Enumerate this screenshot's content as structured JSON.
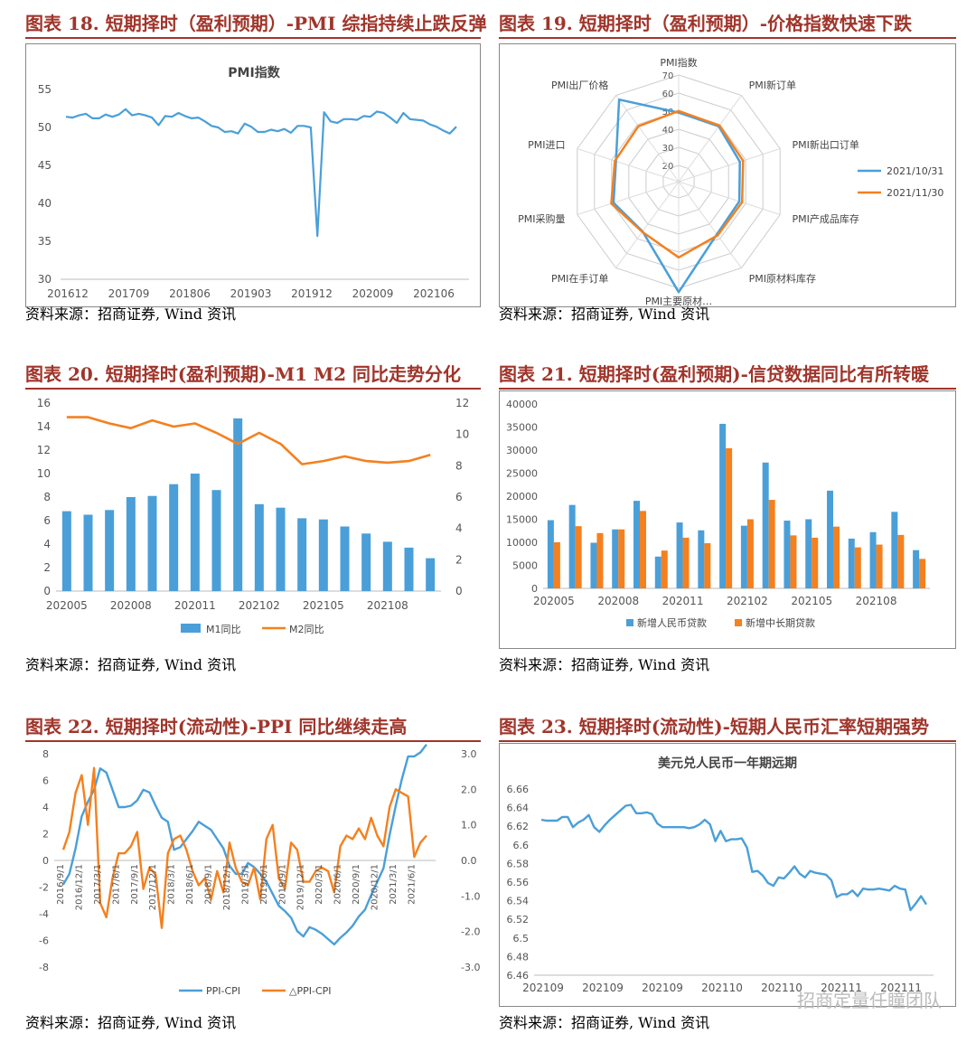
{
  "source_label": "资料来源：招商证券, Wind 资讯",
  "watermark": "招商定量任瞳团队",
  "colors": {
    "blue": "#4a9fd8",
    "orange": "#f4801f",
    "title_red": "#a0352b"
  },
  "charts": {
    "c18": {
      "heading": "图表 18. 短期择时（盈利预期）-PMI 综指持续止跌反弹",
      "chart_data": {
        "type": "line",
        "title": "PMI指数",
        "ylim": [
          30,
          55
        ],
        "yticks": [
          30,
          35,
          40,
          45,
          50,
          55
        ],
        "xticks": [
          "201612",
          "201709",
          "201806",
          "201903",
          "201912",
          "202009",
          "202106"
        ],
        "series": [
          {
            "name": "PMI指数",
            "values": [
              51.4,
              51.3,
              51.6,
              51.8,
              51.2,
              51.2,
              51.7,
              51.4,
              51.7,
              52.4,
              51.6,
              51.8,
              51.6,
              51.3,
              50.3,
              51.5,
              51.4,
              51.9,
              51.5,
              51.2,
              51.3,
              50.8,
              50.2,
              50.0,
              49.4,
              49.5,
              49.2,
              50.5,
              50.1,
              49.4,
              49.4,
              49.7,
              49.5,
              49.8,
              49.3,
              50.2,
              50.2,
              50.0,
              35.7,
              52.0,
              50.8,
              50.6,
              51.1,
              51.1,
              51.0,
              51.5,
              51.4,
              52.1,
              51.9,
              51.3,
              50.6,
              51.9,
              51.1,
              51.0,
              50.9,
              50.4,
              50.1,
              49.6,
              49.2,
              50.1
            ]
          }
        ]
      }
    },
    "c19": {
      "heading": "图表 19. 短期择时（盈利预期）-价格指数快速下跌",
      "chart_data": {
        "type": "radar",
        "rmin": 20,
        "rmax": 70,
        "rticks": [
          20,
          30,
          40,
          50,
          60,
          70
        ],
        "axes": [
          "PMI指数",
          "PMI新订单",
          "PMI新出口订单",
          "PMI产成品库存",
          "PMI原材料库存",
          "PMI主要原材…",
          "PMI在手订单",
          "PMI采购量",
          "PMI进口",
          "PMI出厂价格"
        ],
        "series": [
          {
            "name": "2021/10/31",
            "values": [
              49.2,
              48.8,
              46.6,
              46.3,
              47.0,
              72.1,
              45.0,
              48.9,
              47.5,
              67.1
            ]
          },
          {
            "name": "2021/11/30",
            "values": [
              50.1,
              49.4,
              48.5,
              47.9,
              47.7,
              52.9,
              45.3,
              50.2,
              48.1,
              48.9
            ]
          }
        ]
      }
    },
    "c20": {
      "heading": "图表 20. 短期择时(盈利预期)-M1 M2 同比走势分化",
      "chart_data": {
        "type": "bar+line",
        "ylim": [
          0,
          16
        ],
        "yticks": [
          0,
          2,
          4,
          6,
          8,
          10,
          12,
          14,
          16
        ],
        "y2lim": [
          0,
          12
        ],
        "y2ticks": [
          0,
          2,
          4,
          6,
          8,
          10,
          12
        ],
        "xticks": [
          "202005",
          "202008",
          "202011",
          "202102",
          "202105",
          "202108"
        ],
        "series": [
          {
            "name": "M1同比",
            "kind": "bar",
            "values": [
              6.8,
              6.5,
              6.9,
              8.0,
              8.1,
              9.1,
              10.0,
              8.6,
              14.7,
              7.4,
              7.1,
              6.2,
              6.1,
              5.5,
              4.9,
              4.2,
              3.7,
              2.8
            ]
          },
          {
            "name": "M2同比",
            "kind": "line",
            "values": [
              11.1,
              11.1,
              10.7,
              10.4,
              10.9,
              10.5,
              10.7,
              10.1,
              9.4,
              10.1,
              9.4,
              8.1,
              8.3,
              8.6,
              8.3,
              8.2,
              8.3,
              8.7
            ]
          }
        ]
      }
    },
    "c21": {
      "heading": "图表 21. 短期择时(盈利预期)-信贷数据同比有所转暖",
      "chart_data": {
        "type": "bar",
        "ylim": [
          0,
          40000
        ],
        "yticks": [
          0,
          5000,
          10000,
          15000,
          20000,
          25000,
          30000,
          35000,
          40000
        ],
        "xticks": [
          "202005",
          "202008",
          "202011",
          "202102",
          "202105",
          "202108"
        ],
        "series": [
          {
            "name": "新增人民币贷款",
            "values": [
              14800,
              18100,
              9900,
              12800,
              19000,
              6900,
              14300,
              12600,
              35700,
              13600,
              27300,
              14700,
              15000,
              21200,
              10800,
              12200,
              16600,
              8300
            ]
          },
          {
            "name": "新增中长期贷款",
            "values": [
              10000,
              13500,
              12000,
              12800,
              16800,
              8200,
              11000,
              9800,
              30400,
              15000,
              19200,
              11500,
              11000,
              13400,
              8900,
              9500,
              11600,
              6400
            ]
          }
        ]
      }
    },
    "c22": {
      "heading": "图表 22. 短期择时(流动性)-PPI 同比继续走高",
      "chart_data": {
        "type": "line",
        "ylim": [
          -8,
          8
        ],
        "yticks": [
          -8,
          -6,
          -4,
          -2,
          0,
          2,
          4,
          6,
          8
        ],
        "y2lim": [
          -3,
          3
        ],
        "y2ticks": [
          "-3.0",
          "-2.0",
          "-1.0",
          "0.0",
          "1.0",
          "2.0",
          "3.0"
        ],
        "xticks": [
          "2016/9/1",
          "2016/12/1",
          "2017/3/1",
          "2017/6/1",
          "2017/9/1",
          "2017/12/1",
          "2018/3/1",
          "2018/6/1",
          "2018/9/1",
          "2018/12/1",
          "2019/3/1",
          "2019/6/1",
          "2019/9/1",
          "2019/12/1",
          "2020/3/1",
          "2020/6/1",
          "2020/9/1",
          "2020/12/1",
          "2021/3/1",
          "2021/6/1"
        ],
        "series": [
          {
            "name": "PPI-CPI",
            "axis": "left",
            "values": [
              -1.8,
              -1.0,
              0.9,
              3.3,
              4.4,
              5.3,
              6.9,
              6.6,
              5.3,
              4.0,
              4.0,
              4.1,
              4.5,
              5.3,
              5.1,
              4.1,
              3.2,
              2.9,
              0.8,
              1.0,
              1.6,
              2.2,
              2.9,
              2.6,
              2.3,
              1.6,
              0.9,
              -0.4,
              -1.0,
              -1.0,
              -0.2,
              -0.5,
              -1.0,
              -1.6,
              -2.5,
              -3.4,
              -3.8,
              -4.3,
              -5.3,
              -5.7,
              -5.0,
              -5.2,
              -5.5,
              -5.9,
              -6.3,
              -5.8,
              -5.4,
              -4.9,
              -4.2,
              -3.7,
              -2.6,
              -1.6,
              -0.6,
              1.9,
              4.1,
              6.1,
              7.8,
              7.8,
              8.1,
              8.7
            ]
          },
          {
            "name": "△PPI-CPI",
            "axis": "right",
            "values": [
              0.3,
              0.8,
              1.9,
              2.4,
              1.0,
              2.6,
              -1.2,
              -1.6,
              -0.5,
              0.2,
              0.2,
              0.4,
              0.8,
              -0.8,
              -0.2,
              -0.4,
              -1.9,
              0.2,
              0.6,
              0.7,
              0.3,
              -0.3,
              -0.7,
              -0.5,
              -1.1,
              -0.3,
              -0.9,
              0.5,
              -0.2,
              -0.6,
              -0.7,
              -0.2,
              -1.1,
              0.6,
              1.0,
              -0.5,
              -0.8,
              0.5,
              0.3,
              -0.6,
              -0.6,
              -0.3,
              -0.2,
              -0.3,
              -0.9,
              0.4,
              0.7,
              0.6,
              0.9,
              0.6,
              1.2,
              0.7,
              0.4,
              1.5,
              2.0,
              1.9,
              1.8,
              0.1,
              0.5,
              0.7
            ]
          }
        ]
      }
    },
    "c23": {
      "heading": "图表 23. 短期择时(流动性)-短期人民币汇率短期强势",
      "chart_data": {
        "type": "line",
        "title": "美元兑人民币一年期远期",
        "ylim": [
          6.46,
          6.66
        ],
        "yticks": [
          "6.46",
          "6.48",
          "6.5",
          "6.52",
          "6.54",
          "6.56",
          "6.58",
          "6.6",
          "6.62",
          "6.64",
          "6.66"
        ],
        "xticks": [
          "202109",
          "202109",
          "202109",
          "202110",
          "202110",
          "202111",
          "202111"
        ],
        "series": [
          {
            "name": "美元兑人民币一年期远期",
            "values": [
              6.627,
              6.626,
              6.626,
              6.626,
              6.63,
              6.63,
              6.619,
              6.624,
              6.627,
              6.632,
              6.619,
              6.614,
              6.621,
              6.627,
              6.632,
              6.637,
              6.642,
              6.643,
              6.634,
              6.634,
              6.635,
              6.633,
              6.623,
              6.619,
              6.619,
              6.619,
              6.619,
              6.619,
              6.618,
              6.619,
              6.622,
              6.627,
              6.622,
              6.604,
              6.615,
              6.604,
              6.606,
              6.606,
              6.607,
              6.597,
              6.571,
              6.572,
              6.567,
              6.559,
              6.556,
              6.565,
              6.564,
              6.57,
              6.577,
              6.569,
              6.565,
              6.572,
              6.57,
              6.569,
              6.568,
              6.562,
              6.544,
              6.547,
              6.547,
              6.551,
              6.545,
              6.553,
              6.552,
              6.552,
              6.553,
              6.552,
              6.551,
              6.556,
              6.553,
              6.552,
              6.53,
              6.537,
              6.545,
              6.536
            ]
          }
        ]
      }
    }
  }
}
